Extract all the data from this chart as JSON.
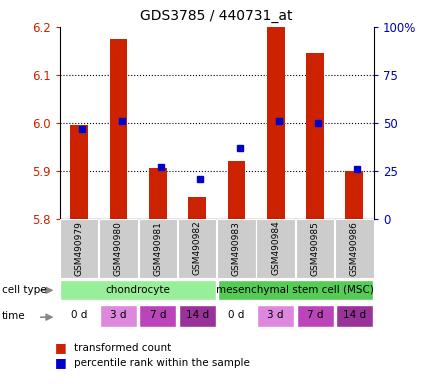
{
  "title": "GDS3785 / 440731_at",
  "samples": [
    "GSM490979",
    "GSM490980",
    "GSM490981",
    "GSM490982",
    "GSM490983",
    "GSM490984",
    "GSM490985",
    "GSM490986"
  ],
  "transformed_count": [
    5.995,
    6.175,
    5.905,
    5.845,
    5.92,
    6.2,
    6.145,
    5.9
  ],
  "percentile_rank": [
    47,
    51,
    27,
    21,
    37,
    51,
    50,
    26
  ],
  "ylim": [
    5.8,
    6.2
  ],
  "yticks": [
    5.8,
    5.9,
    6.0,
    6.1,
    6.2
  ],
  "right_yticks": [
    0,
    25,
    50,
    75,
    100
  ],
  "time": [
    "0 d",
    "3 d",
    "7 d",
    "14 d",
    "0 d",
    "3 d",
    "7 d",
    "14 d"
  ],
  "time_colors": [
    "#ffffff",
    "#dd88dd",
    "#bb44bb",
    "#993399",
    "#ffffff",
    "#dd88dd",
    "#bb44bb",
    "#993399"
  ],
  "cell_type_groups": [
    {
      "label": "chondrocyte",
      "start": 0,
      "end": 4,
      "color": "#99ee99"
    },
    {
      "label": "mesenchymal stem cell (MSC)",
      "start": 4,
      "end": 8,
      "color": "#55cc55"
    }
  ],
  "bar_color": "#cc2200",
  "dot_color": "#0000cc",
  "ylabel_color": "#cc2200",
  "right_ylabel_color": "#0000bb",
  "sample_bg": "#cccccc",
  "legend_items": [
    {
      "color": "#cc2200",
      "label": "transformed count"
    },
    {
      "color": "#0000cc",
      "label": "percentile rank within the sample"
    }
  ]
}
